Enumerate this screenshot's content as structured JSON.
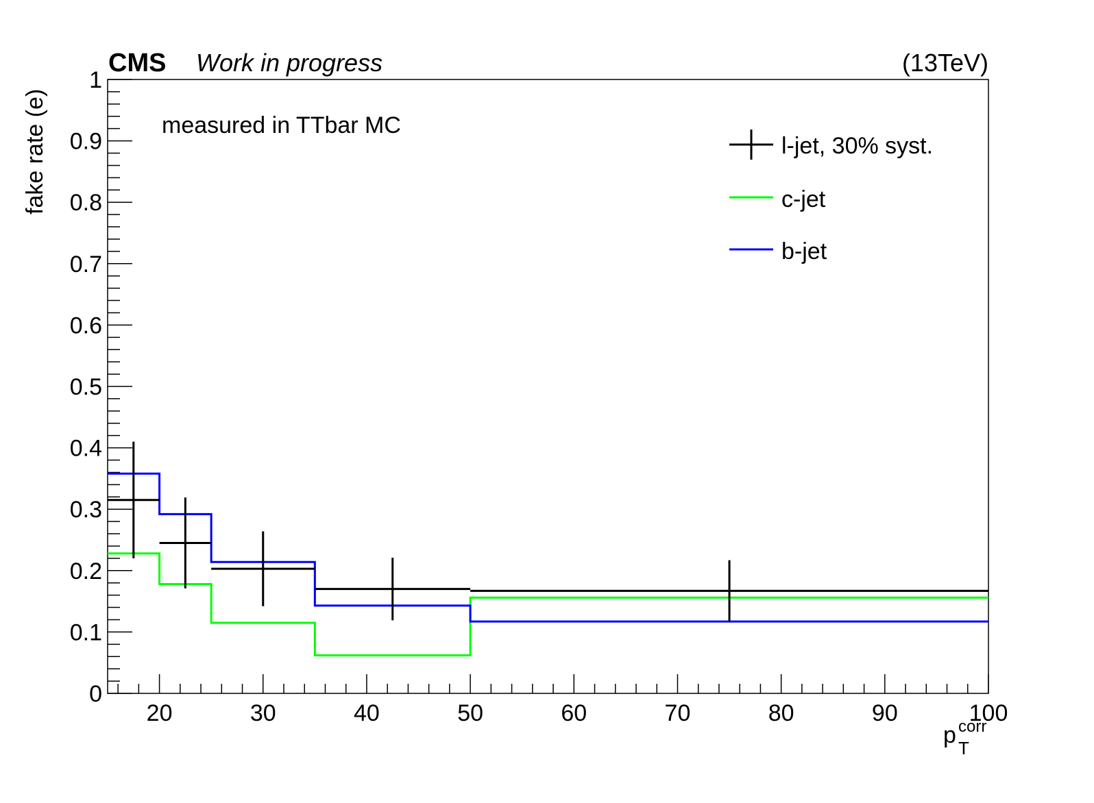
{
  "header": {
    "experiment": "CMS",
    "status": "Work in progress",
    "energy": "(13TeV)"
  },
  "annotation": "measured in TTbar MC",
  "chart_data": {
    "type": "line",
    "style": "step-histogram",
    "xlabel_base": "p",
    "xlabel_sub": "T",
    "xlabel_sup": "corr",
    "ylabel": "fake rate (e)",
    "xlim": [
      15,
      100
    ],
    "ylim": [
      0,
      1
    ],
    "x_ticks": [
      20,
      30,
      40,
      50,
      60,
      70,
      80,
      90,
      100
    ],
    "y_ticks": [
      0,
      0.1,
      0.2,
      0.3,
      0.4,
      0.5,
      0.6,
      0.7,
      0.8,
      0.9,
      1
    ],
    "y_tick_labels": [
      "0",
      "0.1",
      "0.2",
      "0.3",
      "0.4",
      "0.5",
      "0.6",
      "0.7",
      "0.8",
      "0.9",
      "1"
    ],
    "bin_edges": [
      15,
      20,
      25,
      35,
      50,
      100
    ],
    "legend_position": "top-right",
    "series": [
      {
        "name": "l-jet, 30% syst.",
        "color": "#000000",
        "style": "points-with-errors",
        "values": [
          0.315,
          0.245,
          0.203,
          0.17,
          0.167
        ],
        "errors": [
          0.095,
          0.074,
          0.061,
          0.051,
          0.05
        ]
      },
      {
        "name": "c-jet",
        "color": "#00ff00",
        "style": "step",
        "values": [
          0.228,
          0.178,
          0.115,
          0.062,
          0.156
        ]
      },
      {
        "name": "b-jet",
        "color": "#0000ff",
        "style": "step",
        "values": [
          0.358,
          0.292,
          0.214,
          0.143,
          0.117
        ]
      }
    ]
  }
}
